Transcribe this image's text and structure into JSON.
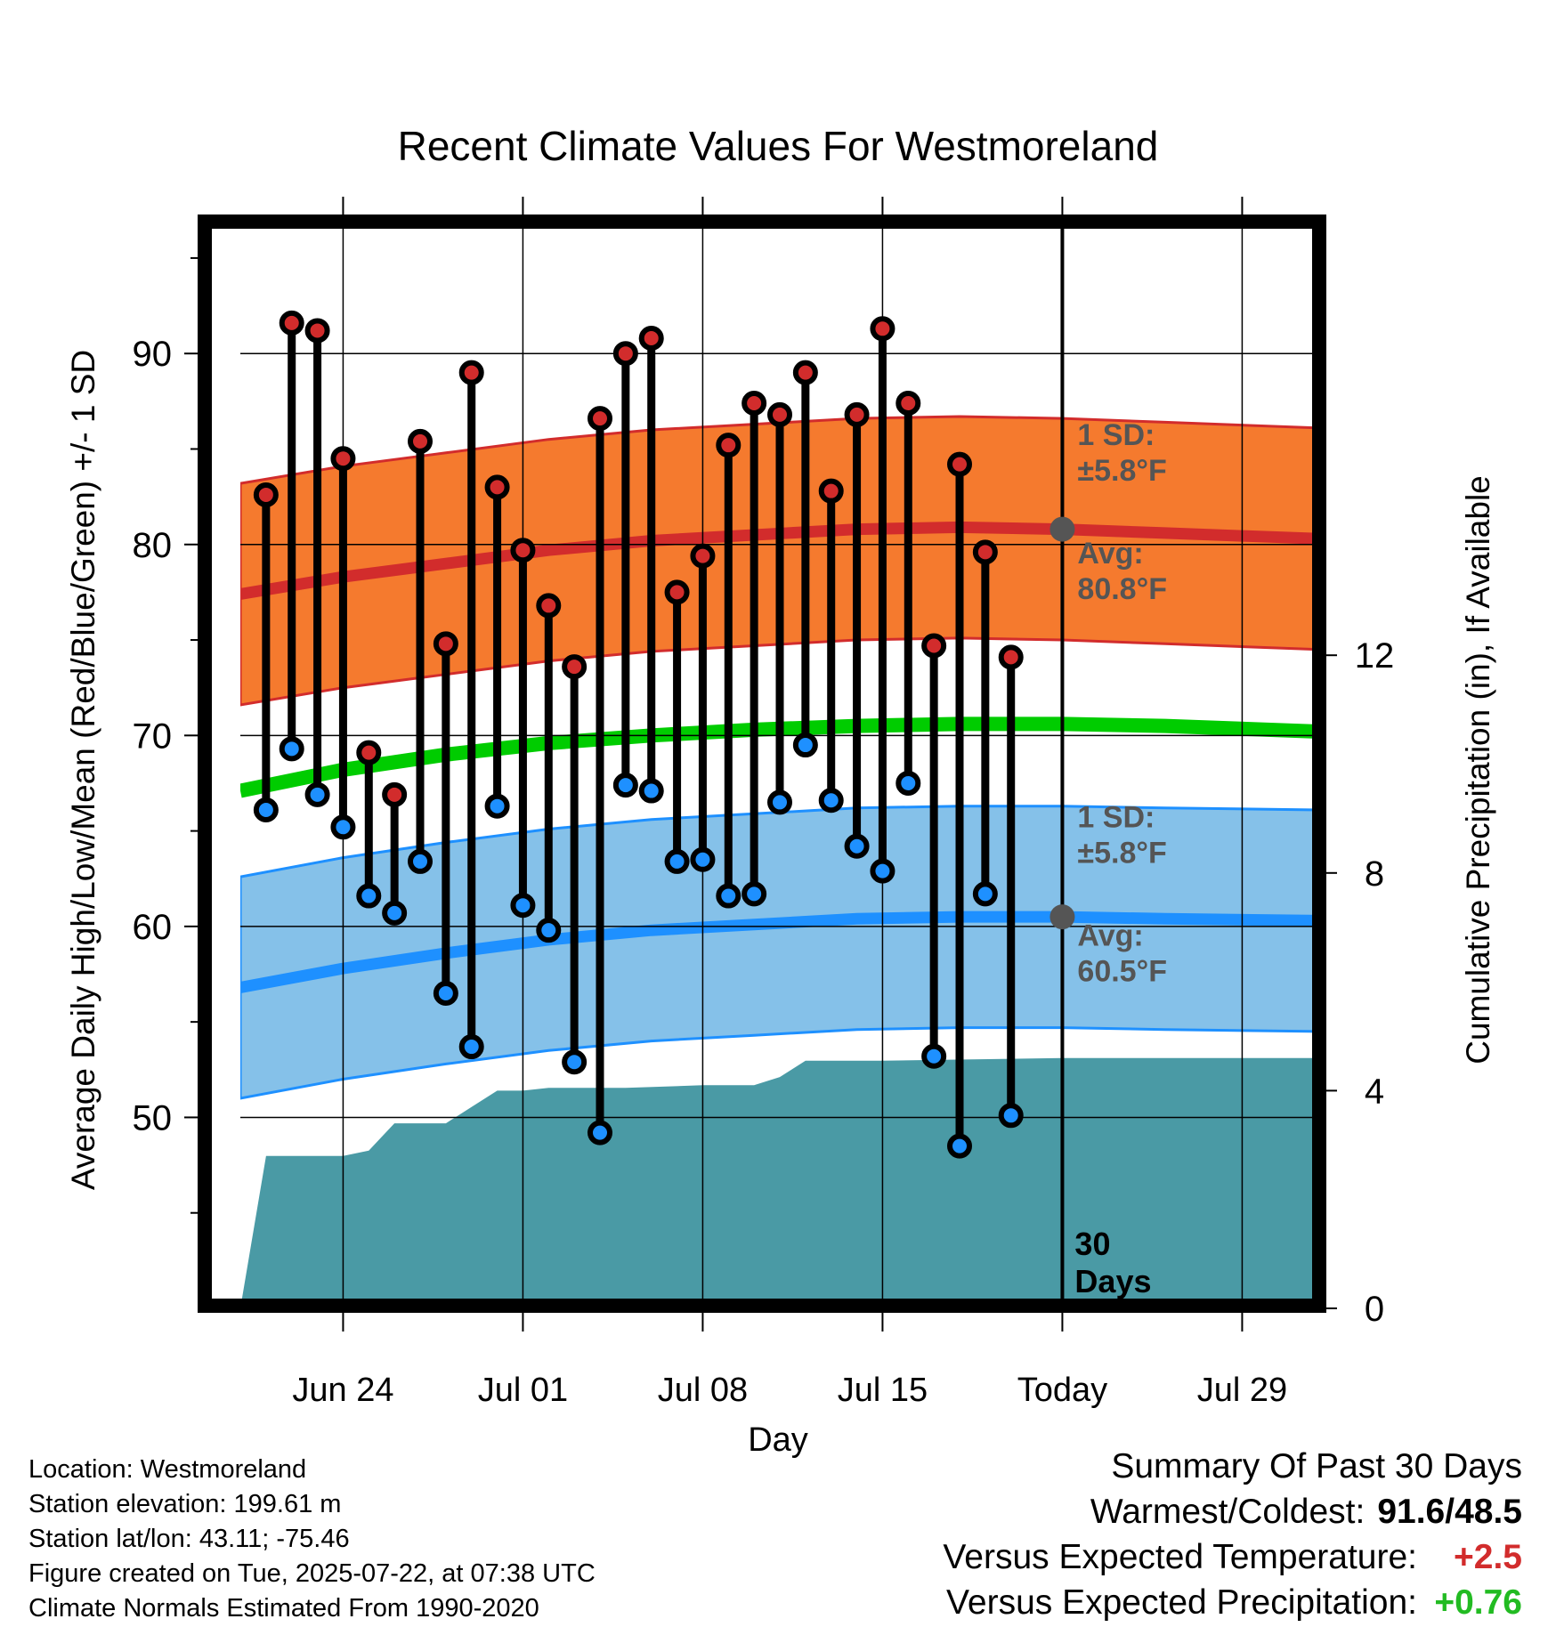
{
  "chart_data": {
    "type": "line",
    "title": "Recent Climate Values For Westmoreland",
    "xlabel": "Day",
    "ylabel": "Average Daily High/Low/Mean (Red/Blue/Green) +/- 1 SD",
    "y2label": "Cumulative Precipitation (in), If Available",
    "ylim": [
      40,
      97
    ],
    "y2lim": [
      0,
      20
    ],
    "xlim": [
      "2025-06-20",
      "2025-08-01"
    ],
    "yticks": [
      "50",
      "60",
      "70",
      "80",
      "90"
    ],
    "y2ticks": [
      "0",
      "4",
      "8",
      "12"
    ],
    "xticks": [
      {
        "date": "2025-06-24",
        "label": "Jun 24"
      },
      {
        "date": "2025-07-01",
        "label": "Jul 01"
      },
      {
        "date": "2025-07-08",
        "label": "Jul 08"
      },
      {
        "date": "2025-07-15",
        "label": "Jul 15"
      },
      {
        "date": "2025-07-22",
        "label": "Today"
      },
      {
        "date": "2025-07-29",
        "label": "Jul 29"
      }
    ],
    "grid": true,
    "today_date": "2025-07-22",
    "today_label": [
      "30",
      "Days"
    ],
    "daily": [
      {
        "date": "2025-06-21",
        "high": 82.6,
        "low": 66.1
      },
      {
        "date": "2025-06-22",
        "high": 91.6,
        "low": 69.3
      },
      {
        "date": "2025-06-23",
        "high": 91.2,
        "low": 66.9
      },
      {
        "date": "2025-06-24",
        "high": 84.5,
        "low": 65.2
      },
      {
        "date": "2025-06-25",
        "high": 69.1,
        "low": 61.6
      },
      {
        "date": "2025-06-26",
        "high": 66.9,
        "low": 60.7
      },
      {
        "date": "2025-06-27",
        "high": 85.4,
        "low": 63.4
      },
      {
        "date": "2025-06-28",
        "high": 74.8,
        "low": 56.5
      },
      {
        "date": "2025-06-29",
        "high": 89.0,
        "low": 53.7
      },
      {
        "date": "2025-06-30",
        "high": 83.0,
        "low": 66.3
      },
      {
        "date": "2025-07-01",
        "high": 79.7,
        "low": 61.1
      },
      {
        "date": "2025-07-02",
        "high": 76.8,
        "low": 59.8
      },
      {
        "date": "2025-07-03",
        "high": 73.6,
        "low": 52.9
      },
      {
        "date": "2025-07-04",
        "high": 86.6,
        "low": 49.2
      },
      {
        "date": "2025-07-05",
        "high": 90.0,
        "low": 67.4
      },
      {
        "date": "2025-07-06",
        "high": 90.8,
        "low": 67.1
      },
      {
        "date": "2025-07-07",
        "high": 77.5,
        "low": 63.4
      },
      {
        "date": "2025-07-08",
        "high": 79.4,
        "low": 63.5
      },
      {
        "date": "2025-07-09",
        "high": 85.2,
        "low": 61.6
      },
      {
        "date": "2025-07-10",
        "high": 87.4,
        "low": 61.7
      },
      {
        "date": "2025-07-11",
        "high": 86.8,
        "low": 66.5
      },
      {
        "date": "2025-07-12",
        "high": 89.0,
        "low": 69.5
      },
      {
        "date": "2025-07-13",
        "high": 82.8,
        "low": 66.6
      },
      {
        "date": "2025-07-14",
        "high": 86.8,
        "low": 64.2
      },
      {
        "date": "2025-07-15",
        "high": 91.3,
        "low": 62.9
      },
      {
        "date": "2025-07-16",
        "high": 87.4,
        "low": 67.5
      },
      {
        "date": "2025-07-17",
        "high": 74.7,
        "low": 53.2
      },
      {
        "date": "2025-07-18",
        "high": 84.2,
        "low": 48.5
      },
      {
        "date": "2025-07-19",
        "high": 79.6,
        "low": 61.7
      },
      {
        "date": "2025-07-20",
        "high": 74.1,
        "low": 50.1
      }
    ],
    "normals": {
      "dates": [
        "2025-06-20",
        "2025-06-24",
        "2025-06-28",
        "2025-07-02",
        "2025-07-06",
        "2025-07-10",
        "2025-07-14",
        "2025-07-18",
        "2025-07-22",
        "2025-07-26",
        "2025-08-01"
      ],
      "high_avg": [
        77.4,
        78.3,
        79.0,
        79.7,
        80.2,
        80.5,
        80.8,
        80.9,
        80.8,
        80.6,
        80.3
      ],
      "low_avg": [
        56.8,
        57.8,
        58.6,
        59.3,
        59.8,
        60.1,
        60.4,
        60.5,
        60.5,
        60.4,
        60.3
      ],
      "mean_avg": [
        67.1,
        68.2,
        69.0,
        69.6,
        70.0,
        70.3,
        70.5,
        70.6,
        70.6,
        70.5,
        70.2
      ],
      "sd": 5.8,
      "high_color": "#d22c2c",
      "high_band_color": "#f57a2e",
      "low_color": "#1e90ff",
      "low_band_color": "#85c1e9",
      "mean_color": "#00cc00"
    },
    "annotations": {
      "high_sd": [
        "1 SD:",
        "±5.8°F"
      ],
      "high_avg": [
        "Avg:",
        "80.8°F"
      ],
      "low_sd": [
        "1 SD:",
        "±5.8°F"
      ],
      "low_avg": [
        "Avg:",
        "60.5°F"
      ]
    },
    "precip": {
      "color": "#4a9aa5",
      "dates": [
        "2025-06-20",
        "2025-06-21",
        "2025-06-24",
        "2025-06-25",
        "2025-06-26",
        "2025-06-28",
        "2025-06-29",
        "2025-06-30",
        "2025-07-01",
        "2025-07-02",
        "2025-07-05",
        "2025-07-08",
        "2025-07-10",
        "2025-07-11",
        "2025-07-12",
        "2025-07-15",
        "2025-07-22",
        "2025-08-01"
      ],
      "values": [
        0.0,
        2.8,
        2.8,
        2.9,
        3.4,
        3.4,
        3.7,
        4.0,
        4.0,
        4.05,
        4.05,
        4.1,
        4.1,
        4.25,
        4.55,
        4.55,
        4.6,
        4.6
      ]
    },
    "colors": {
      "high_marker": "#d22c2c",
      "low_marker": "#1e90ff",
      "stem": "#000000",
      "avg_dot": "#555555",
      "annotation": "#555555"
    }
  },
  "footer": {
    "location": "Location: Westmoreland",
    "elevation": "Station elevation: 199.61 m",
    "latlon": "Station lat/lon: 43.11; -75.46",
    "created": "Figure created on Tue, 2025-07-22, at 07:38 UTC",
    "normals": "Climate Normals Estimated From 1990-2020"
  },
  "summary": {
    "title": "Summary Of Past 30 Days",
    "warm_cold_label": "Warmest/Coldest:",
    "warm_cold_value": "91.6/48.5",
    "temp_label": "Versus Expected Temperature:",
    "temp_value": "+2.5",
    "temp_color": "#d22c2c",
    "precip_label": "Versus Expected Precipitation:",
    "precip_value": "+0.76",
    "precip_color": "#22bb22"
  }
}
